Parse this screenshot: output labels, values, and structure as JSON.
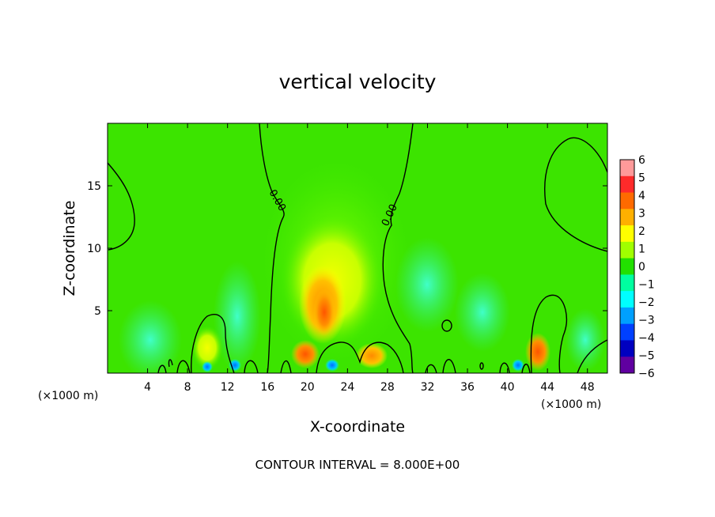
{
  "chart_data": {
    "type": "heatmap",
    "title": "vertical velocity",
    "xlabel": "X-coordinate",
    "ylabel": "Z-coordinate",
    "x_unit": "(×1000 m)",
    "y_unit": "(×1000 m)",
    "xlim": [
      0,
      50
    ],
    "ylim": [
      0,
      20
    ],
    "x_ticks": [
      4,
      8,
      12,
      16,
      20,
      24,
      28,
      32,
      36,
      40,
      44,
      48
    ],
    "y_ticks": [
      5,
      10,
      15
    ],
    "colorbar": {
      "ticks": [
        "6",
        "5",
        "4",
        "3",
        "2",
        "1",
        "0",
        "−1",
        "−2",
        "−3",
        "−4",
        "−5",
        "−6"
      ],
      "colors": [
        "#ff9a9a",
        "#ff2a2a",
        "#ff6a00",
        "#ffb000",
        "#ffff00",
        "#a0ff00",
        "#22e000",
        "#00ffa0",
        "#00ffff",
        "#00a0ff",
        "#0040ff",
        "#0000c0",
        "#6000a0"
      ]
    },
    "contour_label": "0.00",
    "contour_interval_text": "CONTOUR INTERVAL = 8.000E+00",
    "features": [
      {
        "kind": "updraft",
        "x": 21,
        "z": 4,
        "value": 3.5
      },
      {
        "kind": "updraft",
        "x": 19.5,
        "z": 1.2,
        "value": 4
      },
      {
        "kind": "updraft",
        "x": 26.5,
        "z": 1.2,
        "value": 3
      },
      {
        "kind": "updraft",
        "x": 43,
        "z": 1.5,
        "value": 3
      },
      {
        "kind": "broad_rise",
        "x": 23,
        "z": 9,
        "value": 2
      },
      {
        "kind": "downdraft",
        "x": 12.5,
        "z": 0.5,
        "value": -3
      },
      {
        "kind": "downdraft",
        "x": 22,
        "z": 0.5,
        "value": -2.5
      },
      {
        "kind": "downdraft",
        "x": 41,
        "z": 0.5,
        "value": -2.5
      }
    ]
  }
}
